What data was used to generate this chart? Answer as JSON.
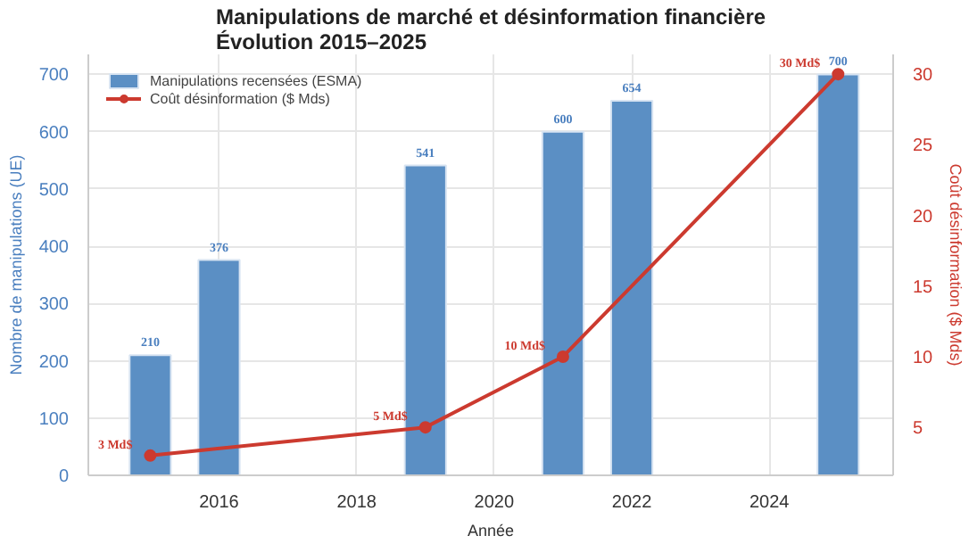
{
  "chart_data": {
    "type": "bar",
    "title": "Manipulations de marché et désinformation financière\nÉvolution 2015–2025",
    "xlabel": "Année",
    "ylabel": "Nombre de manipulations (UE)",
    "y2label": "Coût désinformation ($ Mds)",
    "x": [
      2015,
      2016,
      2019,
      2021,
      2022,
      2025
    ],
    "series": [
      {
        "name": "Manipulations recensées (ESMA)",
        "color": "#5b8fc4",
        "values": [
          210,
          376,
          541,
          600,
          654,
          700
        ]
      },
      {
        "name": "Coût désinformation ($ Mds)",
        "type": "line",
        "axis": "y2",
        "color": "#cc3a2f",
        "x": [
          2015,
          2019,
          2021,
          2025
        ],
        "values": [
          3,
          5,
          10,
          30
        ],
        "value_labels": [
          "3 Md$",
          "5 Md$",
          "10 Md$",
          "30 Md$"
        ],
        "marker": "circle"
      }
    ],
    "xlim": [
      2014.1,
      2025.8
    ],
    "xticks": [
      2016,
      2018,
      2020,
      2022,
      2024
    ],
    "ylim": [
      0,
      735
    ],
    "yticks": [
      0,
      100,
      200,
      300,
      400,
      500,
      600,
      700
    ],
    "y2lim": [
      1.6,
      31.4
    ],
    "y2ticks": [
      5,
      10,
      15,
      20,
      25,
      30
    ],
    "grid": true,
    "legend": "top left",
    "data_labels": true
  }
}
